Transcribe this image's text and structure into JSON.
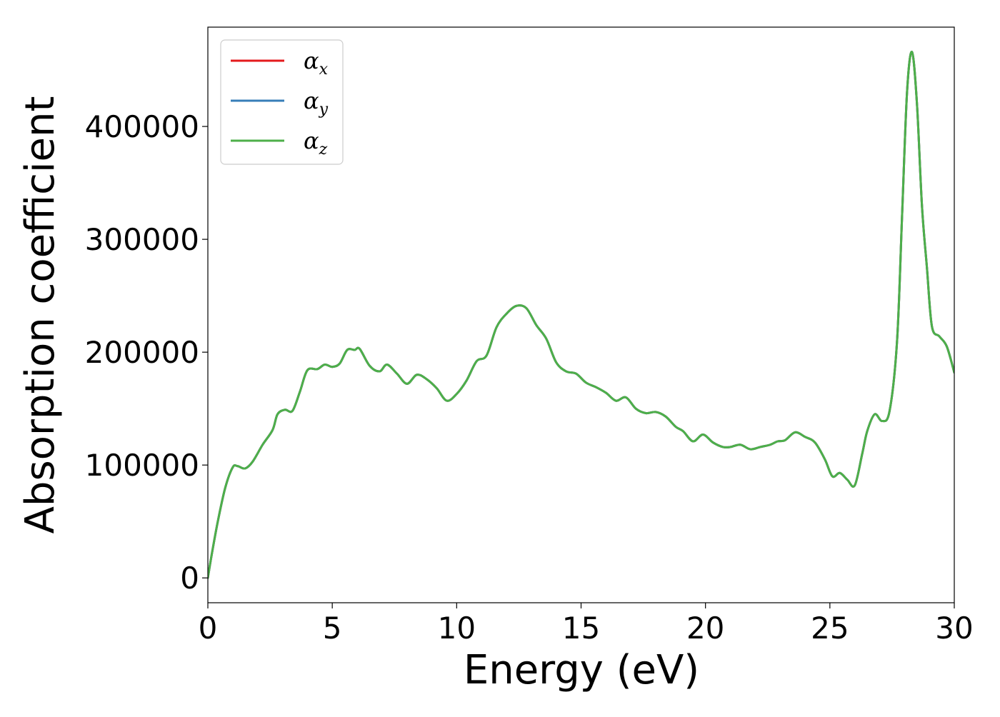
{
  "chart_data": {
    "type": "line",
    "title": "",
    "xlabel": "Energy (eV)",
    "ylabel": "Absorption coefficient",
    "xlim": [
      0,
      30
    ],
    "ylim": [
      -22000,
      488000
    ],
    "xticks": [
      0,
      5,
      10,
      15,
      20,
      25,
      30
    ],
    "xtick_labels": [
      "0",
      "5",
      "10",
      "15",
      "20",
      "25",
      "30"
    ],
    "yticks": [
      0,
      100000,
      200000,
      300000,
      400000
    ],
    "ytick_labels": [
      "0",
      "100000",
      "200000",
      "300000",
      "400000"
    ],
    "grid": false,
    "legend_position": "upper-left",
    "x": [
      0,
      0.15,
      0.4,
      0.7,
      1.0,
      1.2,
      1.5,
      1.8,
      2.2,
      2.6,
      2.8,
      3.1,
      3.4,
      3.7,
      4.0,
      4.4,
      4.7,
      5.0,
      5.3,
      5.6,
      5.9,
      6.1,
      6.5,
      6.9,
      7.2,
      7.6,
      8.0,
      8.4,
      8.8,
      9.2,
      9.6,
      10.0,
      10.4,
      10.8,
      11.2,
      11.6,
      12.0,
      12.4,
      12.8,
      13.2,
      13.6,
      14.0,
      14.4,
      14.8,
      15.2,
      15.6,
      16.0,
      16.4,
      16.8,
      17.2,
      17.6,
      18.0,
      18.4,
      18.8,
      19.1,
      19.5,
      19.9,
      20.3,
      20.7,
      21.0,
      21.4,
      21.8,
      22.2,
      22.6,
      22.9,
      23.2,
      23.6,
      24.0,
      24.4,
      24.8,
      25.1,
      25.4,
      25.7,
      26.0,
      26.3,
      26.5,
      26.8,
      27.1,
      27.4,
      27.7,
      27.9,
      28.1,
      28.3,
      28.5,
      28.7,
      28.9,
      29.1,
      29.4,
      29.7,
      30.0
    ],
    "series": [
      {
        "name": "αx",
        "color": "#e41a1c",
        "values": [
          0,
          20000,
          50000,
          80000,
          98000,
          99000,
          97000,
          103000,
          118000,
          131000,
          145000,
          149000,
          148000,
          165000,
          184000,
          185000,
          189000,
          187000,
          190000,
          202000,
          202000,
          203000,
          188000,
          183000,
          189000,
          181000,
          172000,
          180000,
          176000,
          168000,
          157000,
          163000,
          175000,
          192000,
          197000,
          222000,
          234000,
          241000,
          239000,
          224000,
          212000,
          191000,
          183000,
          181000,
          173000,
          169000,
          164000,
          157000,
          160000,
          150000,
          146000,
          147000,
          143000,
          134000,
          130000,
          121000,
          127000,
          120000,
          116000,
          116000,
          118000,
          114000,
          116000,
          118000,
          121000,
          122000,
          129000,
          125000,
          120000,
          105000,
          90000,
          93000,
          87000,
          82000,
          110000,
          130000,
          145000,
          139000,
          148000,
          210000,
          320000,
          430000,
          466000,
          420000,
          330000,
          275000,
          223000,
          214000,
          205000,
          182000
        ]
      },
      {
        "name": "αy",
        "color": "#377eb8",
        "values": [
          0,
          20000,
          50000,
          80000,
          98000,
          99000,
          97000,
          103000,
          118000,
          131000,
          145000,
          149000,
          148000,
          165000,
          184000,
          185000,
          189000,
          187000,
          190000,
          202000,
          202000,
          203000,
          188000,
          183000,
          189000,
          181000,
          172000,
          180000,
          176000,
          168000,
          157000,
          163000,
          175000,
          192000,
          197000,
          222000,
          234000,
          241000,
          239000,
          224000,
          212000,
          191000,
          183000,
          181000,
          173000,
          169000,
          164000,
          157000,
          160000,
          150000,
          146000,
          147000,
          143000,
          134000,
          130000,
          121000,
          127000,
          120000,
          116000,
          116000,
          118000,
          114000,
          116000,
          118000,
          121000,
          122000,
          129000,
          125000,
          120000,
          105000,
          90000,
          93000,
          87000,
          82000,
          110000,
          130000,
          145000,
          139000,
          148000,
          210000,
          320000,
          430000,
          466000,
          420000,
          330000,
          275000,
          223000,
          214000,
          205000,
          182000
        ]
      },
      {
        "name": "αz",
        "color": "#4daf4a",
        "values": [
          0,
          20000,
          50000,
          80000,
          98000,
          99000,
          97000,
          103000,
          118000,
          131000,
          145000,
          149000,
          148000,
          165000,
          184000,
          185000,
          189000,
          187000,
          190000,
          202000,
          202000,
          203000,
          188000,
          183000,
          189000,
          181000,
          172000,
          180000,
          176000,
          168000,
          157000,
          163000,
          175000,
          192000,
          197000,
          222000,
          234000,
          241000,
          239000,
          224000,
          212000,
          191000,
          183000,
          181000,
          173000,
          169000,
          164000,
          157000,
          160000,
          150000,
          146000,
          147000,
          143000,
          134000,
          130000,
          121000,
          127000,
          120000,
          116000,
          116000,
          118000,
          114000,
          116000,
          118000,
          121000,
          122000,
          129000,
          125000,
          120000,
          105000,
          90000,
          93000,
          87000,
          82000,
          110000,
          130000,
          145000,
          139000,
          148000,
          210000,
          320000,
          430000,
          466000,
          420000,
          330000,
          275000,
          223000,
          214000,
          205000,
          182000
        ]
      }
    ],
    "legend": [
      {
        "symbol": "α",
        "sub": "x",
        "color": "#e41a1c"
      },
      {
        "symbol": "α",
        "sub": "y",
        "color": "#377eb8"
      },
      {
        "symbol": "α",
        "sub": "z",
        "color": "#4daf4a"
      }
    ]
  }
}
